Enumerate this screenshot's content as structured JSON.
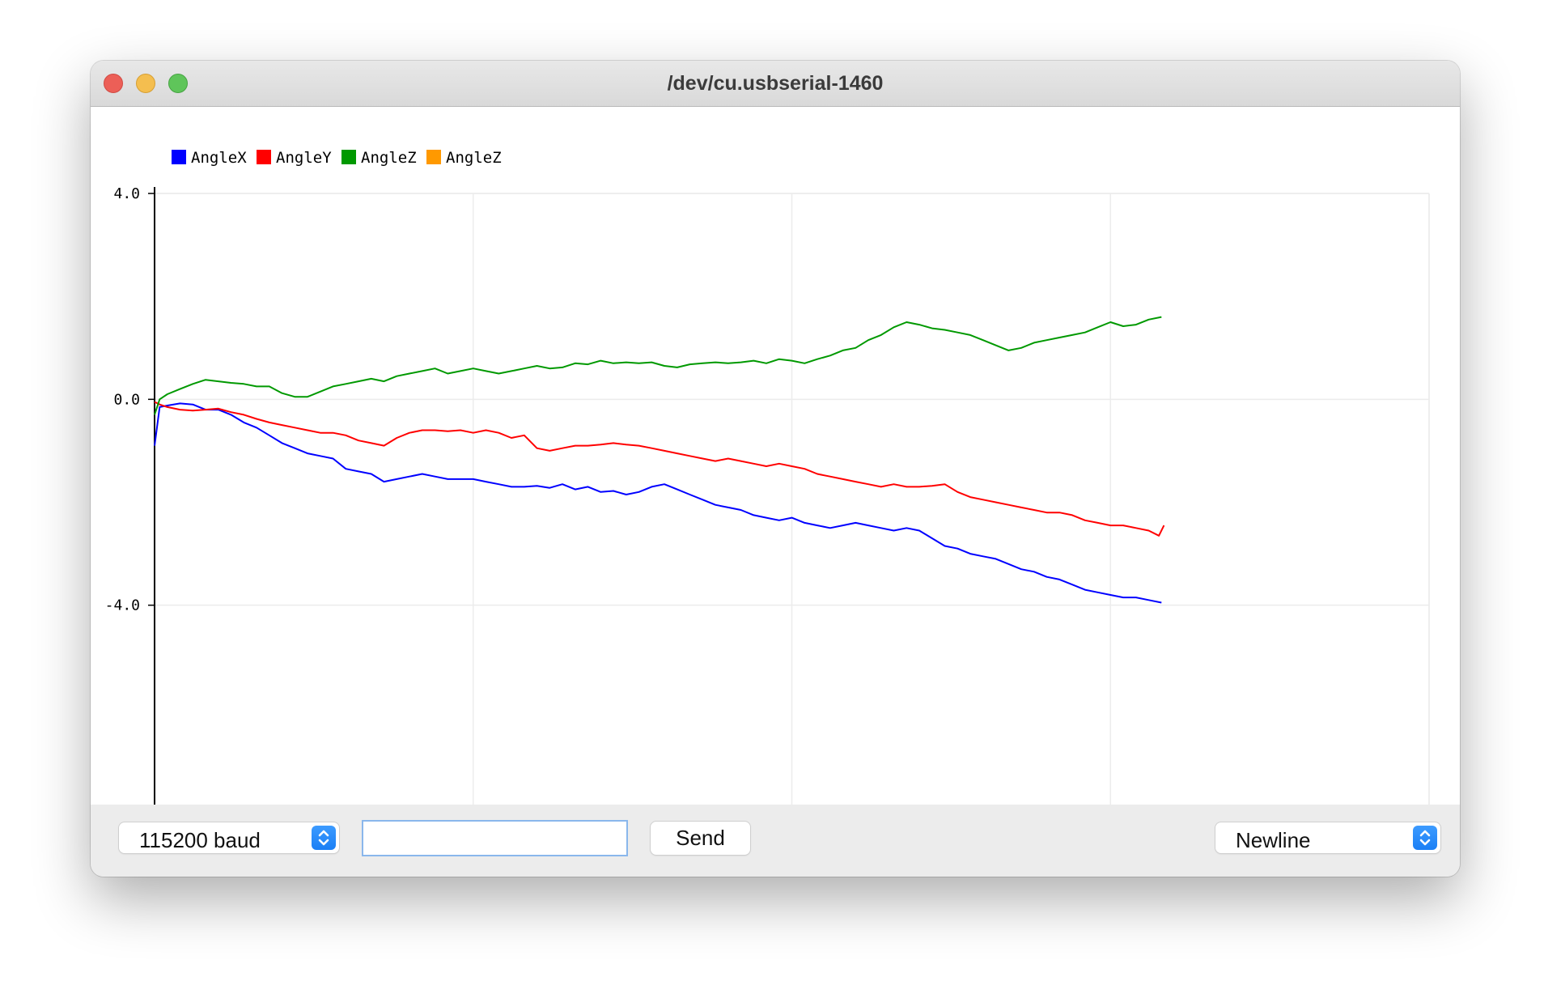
{
  "window": {
    "title": "/dev/cu.usbserial-1460"
  },
  "toolbar": {
    "baud_value": "115200 baud",
    "input_value": "",
    "send_label": "Send",
    "line_ending_value": "Newline"
  },
  "colors": {
    "close": "#ec5f57",
    "minimize": "#f4be4f",
    "zoom": "#5fc55a",
    "select_accent": "#1a7ff5",
    "grid": "#ececec"
  },
  "chart_data": {
    "type": "line",
    "title": "",
    "xlabel": "",
    "ylabel": "",
    "xlim": [
      0,
      500
    ],
    "ylim": [
      -8.0,
      4.0
    ],
    "x_ticks": [
      "0",
      "125",
      "250",
      "375",
      "500"
    ],
    "y_ticks": [
      "4.0",
      "0.0",
      "-4.0",
      "-8.0"
    ],
    "grid": true,
    "legend_position": "top-left",
    "legend": [
      {
        "name": "AngleX",
        "color": "#0000ff"
      },
      {
        "name": "AngleY",
        "color": "#ff0000"
      },
      {
        "name": "AngleZ",
        "color": "#009900"
      },
      {
        "name": "AngleZ",
        "color": "#ff9900"
      }
    ],
    "series": [
      {
        "name": "AngleX",
        "color": "#0000ff",
        "x": [
          0,
          2,
          5,
          10,
          15,
          20,
          25,
          30,
          35,
          40,
          45,
          50,
          55,
          60,
          65,
          70,
          75,
          80,
          85,
          90,
          95,
          100,
          105,
          110,
          115,
          120,
          125,
          130,
          135,
          140,
          145,
          150,
          155,
          160,
          165,
          170,
          175,
          180,
          185,
          190,
          195,
          200,
          205,
          210,
          215,
          220,
          225,
          230,
          235,
          240,
          245,
          250,
          255,
          260,
          265,
          270,
          275,
          280,
          285,
          290,
          295,
          300,
          305,
          310,
          315,
          320,
          325,
          330,
          335,
          340,
          345,
          350,
          355,
          360,
          365,
          370,
          375,
          380,
          385,
          390,
          395
        ],
        "values": [
          -0.9,
          -0.15,
          -0.12,
          -0.08,
          -0.1,
          -0.2,
          -0.2,
          -0.3,
          -0.45,
          -0.55,
          -0.7,
          -0.85,
          -0.95,
          -1.05,
          -1.1,
          -1.15,
          -1.35,
          -1.4,
          -1.45,
          -1.6,
          -1.55,
          -1.5,
          -1.45,
          -1.5,
          -1.55,
          -1.55,
          -1.55,
          -1.6,
          -1.65,
          -1.7,
          -1.7,
          -1.68,
          -1.72,
          -1.65,
          -1.75,
          -1.7,
          -1.8,
          -1.78,
          -1.85,
          -1.8,
          -1.7,
          -1.65,
          -1.75,
          -1.85,
          -1.95,
          -2.05,
          -2.1,
          -2.15,
          -2.25,
          -2.3,
          -2.35,
          -2.3,
          -2.4,
          -2.45,
          -2.5,
          -2.45,
          -2.4,
          -2.45,
          -2.5,
          -2.55,
          -2.5,
          -2.55,
          -2.7,
          -2.85,
          -2.9,
          -3.0,
          -3.05,
          -3.1,
          -3.2,
          -3.3,
          -3.35,
          -3.45,
          -3.5,
          -3.6,
          -3.7,
          -3.75,
          -3.8,
          -3.85,
          -3.85,
          -3.9,
          -3.95
        ]
      },
      {
        "name": "AngleY",
        "color": "#ff0000",
        "x": [
          0,
          2,
          5,
          10,
          15,
          20,
          25,
          30,
          35,
          40,
          45,
          50,
          55,
          60,
          65,
          70,
          75,
          80,
          85,
          90,
          95,
          100,
          105,
          110,
          115,
          120,
          125,
          130,
          135,
          140,
          145,
          150,
          155,
          160,
          165,
          170,
          175,
          180,
          185,
          190,
          195,
          200,
          205,
          210,
          215,
          220,
          225,
          230,
          235,
          240,
          245,
          250,
          255,
          260,
          265,
          270,
          275,
          280,
          285,
          290,
          295,
          300,
          305,
          310,
          315,
          320,
          325,
          330,
          335,
          340,
          345,
          350,
          355,
          360,
          365,
          370,
          375,
          380,
          385,
          390,
          394,
          396
        ],
        "values": [
          -0.05,
          -0.1,
          -0.15,
          -0.2,
          -0.22,
          -0.2,
          -0.18,
          -0.25,
          -0.3,
          -0.38,
          -0.45,
          -0.5,
          -0.55,
          -0.6,
          -0.65,
          -0.65,
          -0.7,
          -0.8,
          -0.85,
          -0.9,
          -0.75,
          -0.65,
          -0.6,
          -0.6,
          -0.62,
          -0.6,
          -0.65,
          -0.6,
          -0.65,
          -0.75,
          -0.7,
          -0.95,
          -1.0,
          -0.95,
          -0.9,
          -0.9,
          -0.88,
          -0.85,
          -0.88,
          -0.9,
          -0.95,
          -1.0,
          -1.05,
          -1.1,
          -1.15,
          -1.2,
          -1.15,
          -1.2,
          -1.25,
          -1.3,
          -1.25,
          -1.3,
          -1.35,
          -1.45,
          -1.5,
          -1.55,
          -1.6,
          -1.65,
          -1.7,
          -1.65,
          -1.7,
          -1.7,
          -1.68,
          -1.65,
          -1.8,
          -1.9,
          -1.95,
          -2.0,
          -2.05,
          -2.1,
          -2.15,
          -2.2,
          -2.2,
          -2.25,
          -2.35,
          -2.4,
          -2.45,
          -2.45,
          -2.5,
          -2.55,
          -2.65,
          -2.45
        ]
      },
      {
        "name": "AngleZ",
        "color": "#009900",
        "x": [
          0,
          2,
          5,
          10,
          15,
          20,
          25,
          30,
          35,
          40,
          45,
          50,
          55,
          60,
          65,
          70,
          75,
          80,
          85,
          90,
          95,
          100,
          105,
          110,
          115,
          120,
          125,
          130,
          135,
          140,
          145,
          150,
          155,
          160,
          165,
          170,
          175,
          180,
          185,
          190,
          195,
          200,
          205,
          210,
          215,
          220,
          225,
          230,
          235,
          240,
          245,
          250,
          255,
          260,
          265,
          270,
          275,
          280,
          285,
          290,
          295,
          300,
          305,
          310,
          315,
          320,
          325,
          330,
          335,
          340,
          345,
          350,
          355,
          360,
          365,
          370,
          375,
          380,
          385,
          390,
          395
        ],
        "values": [
          -0.3,
          0.0,
          0.1,
          0.2,
          0.3,
          0.38,
          0.35,
          0.32,
          0.3,
          0.25,
          0.25,
          0.12,
          0.05,
          0.05,
          0.15,
          0.25,
          0.3,
          0.35,
          0.4,
          0.35,
          0.45,
          0.5,
          0.55,
          0.6,
          0.5,
          0.55,
          0.6,
          0.55,
          0.5,
          0.55,
          0.6,
          0.65,
          0.6,
          0.62,
          0.7,
          0.68,
          0.75,
          0.7,
          0.72,
          0.7,
          0.72,
          0.65,
          0.62,
          0.68,
          0.7,
          0.72,
          0.7,
          0.72,
          0.75,
          0.7,
          0.78,
          0.75,
          0.7,
          0.78,
          0.85,
          0.95,
          1.0,
          1.15,
          1.25,
          1.4,
          1.5,
          1.45,
          1.38,
          1.35,
          1.3,
          1.25,
          1.15,
          1.05,
          0.95,
          1.0,
          1.1,
          1.15,
          1.2,
          1.25,
          1.3,
          1.4,
          1.5,
          1.42,
          1.45,
          1.55,
          1.6
        ]
      },
      {
        "name": "AngleZ",
        "color": "#ff9900",
        "x": [],
        "values": []
      }
    ]
  }
}
